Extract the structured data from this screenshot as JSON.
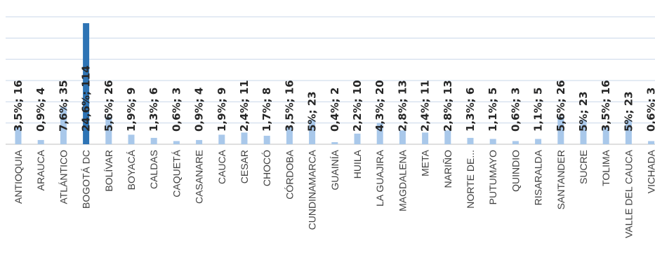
{
  "chart_data": {
    "type": "bar",
    "title": "",
    "xlabel": "",
    "ylabel": "",
    "ylim": [
      0,
      120
    ],
    "grid": true,
    "legend": "none",
    "colors": {
      "default": "#a9c8ea",
      "highlight": "#2e74b5"
    },
    "highlight_index": 3,
    "categories": [
      "ANTIOQUIA",
      "ARAUCA",
      "ATLÁNTICO",
      "BOGOTÁ DC",
      "BOLÍVAR",
      "BOYACÁ",
      "CALDAS",
      "CAQUETÁ",
      "CASANARE",
      "CAUCA",
      "CESAR",
      "CHOCÓ",
      "CÓRDOBA",
      "CUNDINAMARCA",
      "GUAINÍA",
      "HUILA",
      "LA GUAJIRA",
      "MAGDALENA",
      "META",
      "NARIÑO",
      "NORTE DE...",
      "PUTUMAYO",
      "QUINDIO",
      "RISARALDA",
      "SANTANDER",
      "SUCRE",
      "TOLIMA",
      "VALLE DEL CAUCA",
      "VICHADA"
    ],
    "values": [
      16,
      4,
      35,
      114,
      26,
      9,
      6,
      3,
      4,
      9,
      11,
      8,
      16,
      23,
      2,
      10,
      20,
      13,
      11,
      13,
      6,
      5,
      3,
      5,
      26,
      23,
      16,
      23,
      3
    ],
    "data_labels": [
      "3,5%; 16",
      "0,9%; 4",
      "7,6%; 35",
      "24,6%; 114",
      "5,6%; 26",
      "1,9%; 9",
      "1,3%; 6",
      "0,6%; 3",
      "0,9%; 4",
      "1,9%; 9",
      "2,4%; 11",
      "1,7%; 8",
      "3,5%; 16",
      "5%; 23",
      "0,4%; 2",
      "2,2%; 10",
      "4,3%; 20",
      "2,8%; 13",
      "2,4%; 11",
      "2,8%; 13",
      "1,3%; 6",
      "1,1%; 5",
      "0,6%; 3",
      "1,1%; 5",
      "5,6%; 26",
      "5%; 23",
      "3,5%; 16",
      "5%; 23",
      "0,6%; 3"
    ]
  }
}
